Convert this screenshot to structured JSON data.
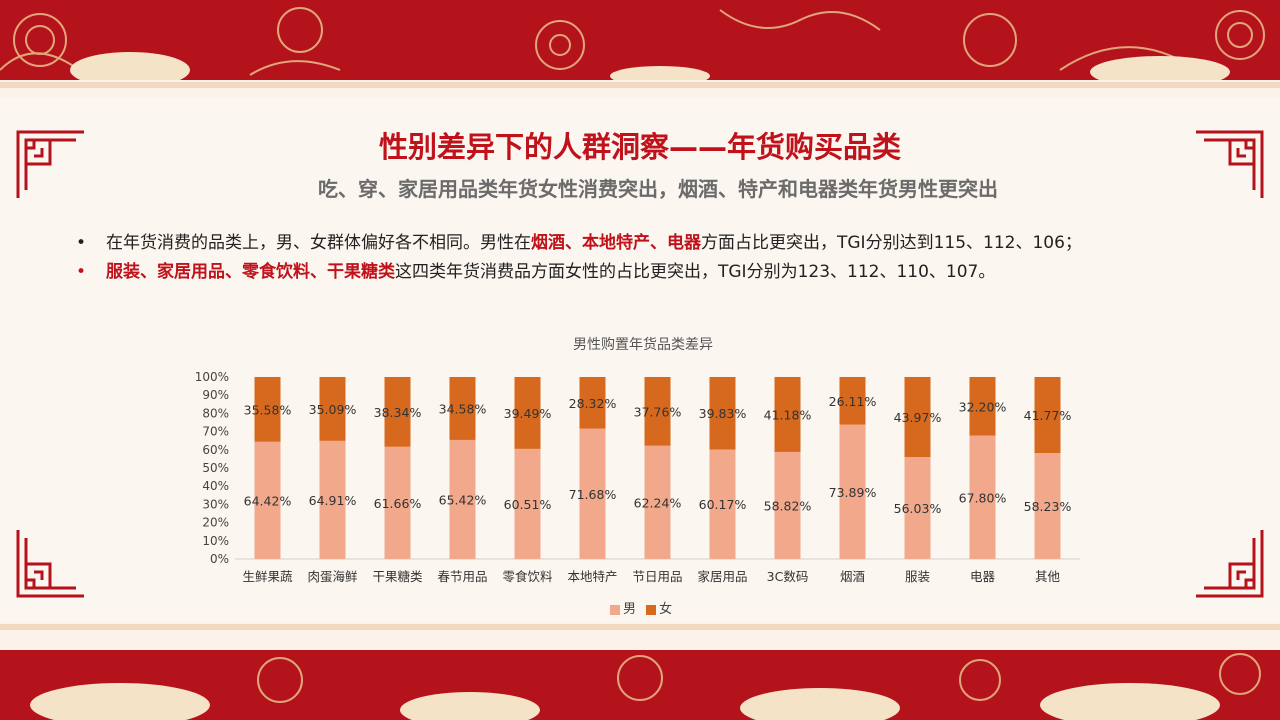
{
  "page": {
    "title": "性别差异下的人群洞察——年货购买品类",
    "subtitle": "吃、穿、家居用品类年货女性消费突出，烟酒、特产和电器类年货男性更突出",
    "bullets": [
      {
        "marker": "•",
        "parts": [
          {
            "text": "在年货消费的品类上，男、女群体偏好各不相同。男性在",
            "highlight": false
          },
          {
            "text": "烟酒、本地特产、电器",
            "highlight": true
          },
          {
            "text": "方面占比更突出，TGI分别达到115、112、106；",
            "highlight": false
          }
        ]
      },
      {
        "marker": "•",
        "parts": [
          {
            "text": "服装、家居用品、零食饮料、干果糖类",
            "highlight": true
          },
          {
            "text": "这四类年货消费品方面女性的占比更突出，TGI分别为123、112、110、107。",
            "highlight": false
          }
        ]
      }
    ]
  },
  "colors": {
    "male": "#f2a98b",
    "female": "#d7691e",
    "highlight": "#c0121b",
    "band": "#b5131c"
  },
  "chart_data": {
    "type": "bar",
    "stacked": true,
    "title": "男性购置年货品类差异",
    "categories": [
      "生鲜果蔬",
      "肉蛋海鲜",
      "干果糖类",
      "春节用品",
      "零食饮料",
      "本地特产",
      "节日用品",
      "家居用品",
      "3C数码",
      "烟酒",
      "服装",
      "电器",
      "其他"
    ],
    "series": [
      {
        "name": "男",
        "values": [
          64.42,
          64.91,
          61.66,
          65.42,
          60.51,
          71.68,
          62.24,
          60.17,
          58.82,
          73.89,
          56.03,
          67.8,
          58.23
        ],
        "labels": [
          "64.42%",
          "64.91%",
          "61.66%",
          "65.42%",
          "60.51%",
          "71.68%",
          "62.24%",
          "60.17%",
          "58.82%",
          "73.89%",
          "56.03%",
          "67.80%",
          "58.23%"
        ]
      },
      {
        "name": "女",
        "values": [
          35.58,
          35.09,
          38.34,
          34.58,
          39.49,
          28.32,
          37.76,
          39.83,
          41.18,
          26.11,
          43.97,
          32.2,
          41.77
        ],
        "labels": [
          "35.58%",
          "35.09%",
          "38.34%",
          "34.58%",
          "39.49%",
          "28.32%",
          "37.76%",
          "39.83%",
          "41.18%",
          "26.11%",
          "43.97%",
          "32.20%",
          "41.77%"
        ]
      }
    ],
    "yticks": [
      "0%",
      "10%",
      "20%",
      "30%",
      "40%",
      "50%",
      "60%",
      "70%",
      "80%",
      "90%",
      "100%"
    ],
    "ylim": [
      0,
      100
    ],
    "grid": false,
    "legend": "bottom"
  }
}
